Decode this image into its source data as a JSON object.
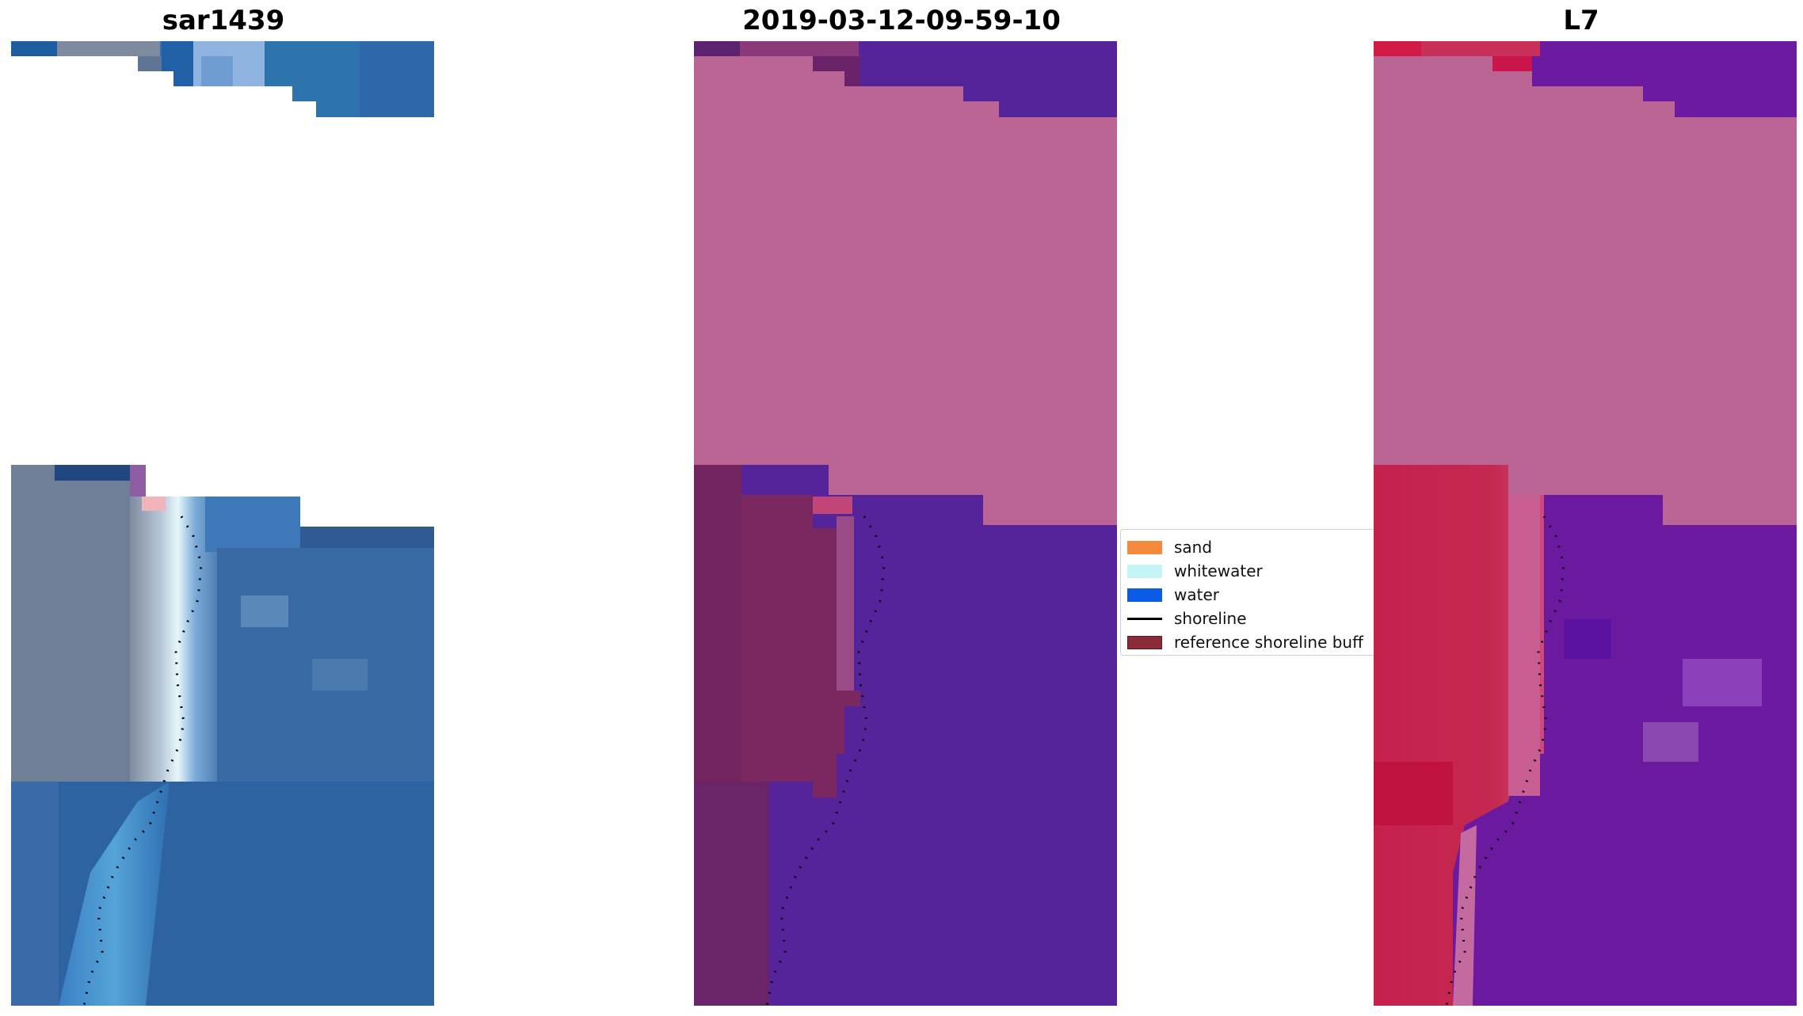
{
  "panels": [
    {
      "title": "sar1439"
    },
    {
      "title": "2019-03-12-09-59-10"
    },
    {
      "title": "L7"
    }
  ],
  "legend": {
    "items": [
      {
        "label": "sand",
        "kind": "patch",
        "color": "#f58a3c"
      },
      {
        "label": "whitewater",
        "kind": "patch",
        "color": "#c4f5f5"
      },
      {
        "label": "water",
        "kind": "patch",
        "color": "#0b5be4"
      },
      {
        "label": "shoreline",
        "kind": "line",
        "color": "#000000"
      },
      {
        "label": "reference shoreline buff",
        "kind": "patch",
        "color": "#8b2b35"
      }
    ]
  },
  "colors": {
    "rgb_sea": "#2f5a94",
    "rgb_land": "#6e7f97",
    "classified_mask": "#bb6594",
    "classified_water": "#55239a",
    "classified_land": "#7b2760",
    "l7_water": "#6b1aa0",
    "l7_sand": "#c6214d"
  }
}
